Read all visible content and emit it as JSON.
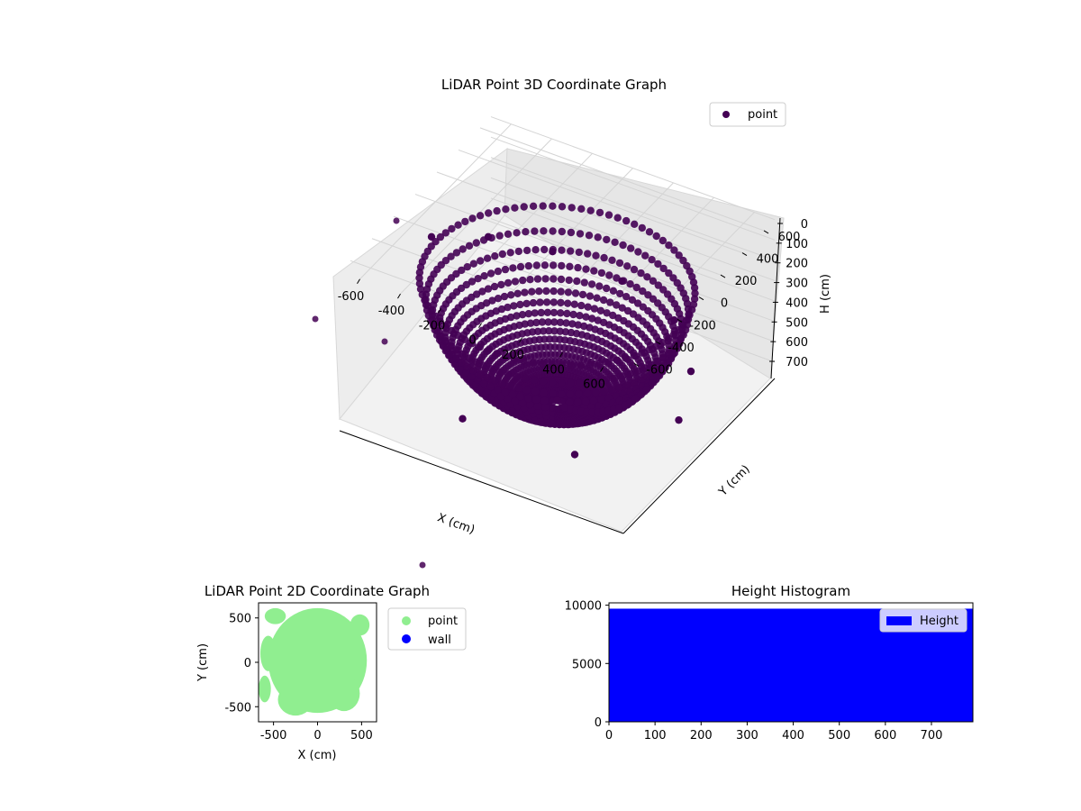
{
  "chart_data": [
    {
      "type": "scatter",
      "projection": "3d",
      "title": "LiDAR Point 3D Coordinate Graph",
      "xlabel": "X (cm)",
      "ylabel": "Y (cm)",
      "zlabel": "H (cm)",
      "xlim": [
        -700,
        700
      ],
      "ylim": [
        -700,
        700
      ],
      "zlim": [
        780,
        0
      ],
      "z_axis_inverted": true,
      "x_ticks": [
        "-600",
        "-400",
        "-200",
        "0",
        "200",
        "400",
        "600"
      ],
      "y_ticks": [
        "-600",
        "-400",
        "-200",
        "0",
        "200",
        "400",
        "600"
      ],
      "z_ticks": [
        "0",
        "100",
        "200",
        "300",
        "400",
        "500",
        "600",
        "700"
      ],
      "legend": {
        "placement": "top-right",
        "entries": [
          {
            "label": "point",
            "color": "#440154"
          }
        ]
      },
      "series": [
        {
          "name": "point",
          "color": "#440154",
          "marker": "dots arranged on dome-shaped arcs (radius ~620 cm, depth 0-780 cm)",
          "sample_points": [
            {
              "x": -620,
              "y": 0,
              "h": 180
            },
            {
              "x": -500,
              "y": 300,
              "h": 300
            },
            {
              "x": -300,
              "y": 520,
              "h": 420
            },
            {
              "x": 0,
              "y": 600,
              "h": 500
            },
            {
              "x": 300,
              "y": 520,
              "h": 540
            },
            {
              "x": 500,
              "y": 300,
              "h": 600
            },
            {
              "x": 600,
              "y": 0,
              "h": 640
            },
            {
              "x": 0,
              "y": 0,
              "h": 760
            },
            {
              "x": 300,
              "y": -400,
              "h": 700
            },
            {
              "x": -200,
              "y": -500,
              "h": 650
            }
          ]
        }
      ],
      "grid": true
    },
    {
      "type": "scatter",
      "title": "LiDAR Point 2D Coordinate Graph",
      "xlabel": "X (cm)",
      "ylabel": "Y (cm)",
      "xlim": [
        -670,
        670
      ],
      "ylim": [
        -670,
        670
      ],
      "x_ticks": [
        "-500",
        "0",
        "500"
      ],
      "y_ticks": [
        "-500",
        "0",
        "500"
      ],
      "legend": {
        "placement": "outside-right",
        "entries": [
          {
            "label": "point",
            "color": "#90ee90"
          },
          {
            "label": "wall",
            "color": "#0000ff"
          }
        ]
      },
      "series": [
        {
          "name": "point",
          "color": "#90ee90",
          "fill": "dense filled disc, radius ~600 cm"
        },
        {
          "name": "wall",
          "color": "#0000ff",
          "values": []
        }
      ],
      "grid": false
    },
    {
      "type": "bar",
      "title": "Height Histogram",
      "xlabel": "",
      "ylabel": "",
      "xlim": [
        0,
        790
      ],
      "ylim": [
        0,
        10200
      ],
      "x_ticks": [
        "0",
        "100",
        "200",
        "300",
        "400",
        "500",
        "600",
        "700"
      ],
      "y_ticks": [
        "0",
        "5000",
        "10000"
      ],
      "legend": {
        "placement": "top-right",
        "entries": [
          {
            "label": "Height",
            "color": "#0000ff"
          }
        ]
      },
      "series": [
        {
          "name": "Height",
          "color": "#0000ff",
          "bin_range": [
            0,
            790
          ],
          "value": 9700
        }
      ],
      "grid": false
    }
  ]
}
